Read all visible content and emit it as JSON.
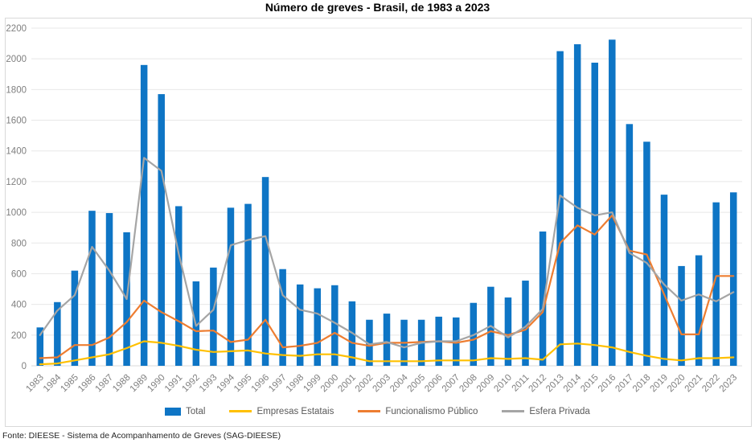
{
  "title": "Número de greves - Brasil, de 1983 a 2023",
  "footer": "Fonte: DIEESE - Sistema de Acompanhamento de Greves (SAG-DIEESE)",
  "colors": {
    "bar_blue": "#0e75c5",
    "yellow": "#ffc000",
    "orange": "#ed7d31",
    "gray": "#a5a5a5",
    "gridline": "#e8e8e8",
    "axis_line": "#d9d9d9",
    "tick_text": "#7f7f7f",
    "legend_text": "#595959"
  },
  "chart_data": {
    "type": "bar",
    "title": "Número de greves - Brasil, de 1983 a 2023",
    "xlabel": "",
    "ylabel": "",
    "ylim": [
      0,
      2200
    ],
    "ytick_step": 200,
    "grid": true,
    "legend_position": "bottom",
    "categories": [
      1983,
      1984,
      1985,
      1986,
      1987,
      1988,
      1989,
      1990,
      1991,
      1992,
      1993,
      1994,
      1995,
      1996,
      1997,
      1998,
      1999,
      2000,
      2001,
      2002,
      2003,
      2004,
      2005,
      2006,
      2007,
      2008,
      2009,
      2010,
      2011,
      2012,
      2013,
      2014,
      2015,
      2016,
      2017,
      2018,
      2019,
      2020,
      2021,
      2022,
      2023
    ],
    "series": [
      {
        "name": "Total",
        "type": "bar",
        "color": "#0e75c5",
        "values": [
          250,
          415,
          620,
          1010,
          995,
          870,
          1960,
          1770,
          1040,
          550,
          640,
          1030,
          1055,
          1230,
          630,
          530,
          505,
          525,
          420,
          300,
          340,
          300,
          300,
          320,
          315,
          410,
          515,
          445,
          555,
          875,
          2050,
          2095,
          1975,
          2125,
          1575,
          1460,
          1115,
          650,
          720,
          1065,
          1130
        ]
      },
      {
        "name": "Empresas Estatais",
        "type": "line",
        "color": "#ffc000",
        "values": [
          10,
          15,
          35,
          55,
          75,
          115,
          160,
          150,
          130,
          105,
          90,
          95,
          100,
          80,
          70,
          65,
          75,
          75,
          55,
          30,
          30,
          30,
          30,
          35,
          35,
          35,
          50,
          45,
          50,
          40,
          140,
          145,
          135,
          120,
          90,
          65,
          45,
          35,
          50,
          50,
          55
        ]
      },
      {
        "name": "Funcionalismo Público",
        "type": "line",
        "color": "#ed7d31",
        "values": [
          50,
          55,
          135,
          135,
          185,
          285,
          425,
          350,
          290,
          225,
          230,
          155,
          170,
          300,
          120,
          130,
          150,
          215,
          150,
          130,
          150,
          150,
          155,
          160,
          150,
          170,
          225,
          200,
          235,
          350,
          800,
          915,
          855,
          980,
          750,
          725,
          465,
          205,
          205,
          585,
          585
        ]
      },
      {
        "name": "Esfera Privada",
        "type": "line",
        "color": "#a5a5a5",
        "values": [
          200,
          360,
          460,
          775,
          620,
          435,
          1355,
          1270,
          730,
          260,
          365,
          785,
          820,
          845,
          460,
          365,
          340,
          280,
          215,
          140,
          155,
          120,
          150,
          160,
          160,
          200,
          260,
          185,
          255,
          370,
          1110,
          1030,
          980,
          1000,
          735,
          670,
          530,
          425,
          465,
          420,
          480
        ]
      }
    ]
  }
}
